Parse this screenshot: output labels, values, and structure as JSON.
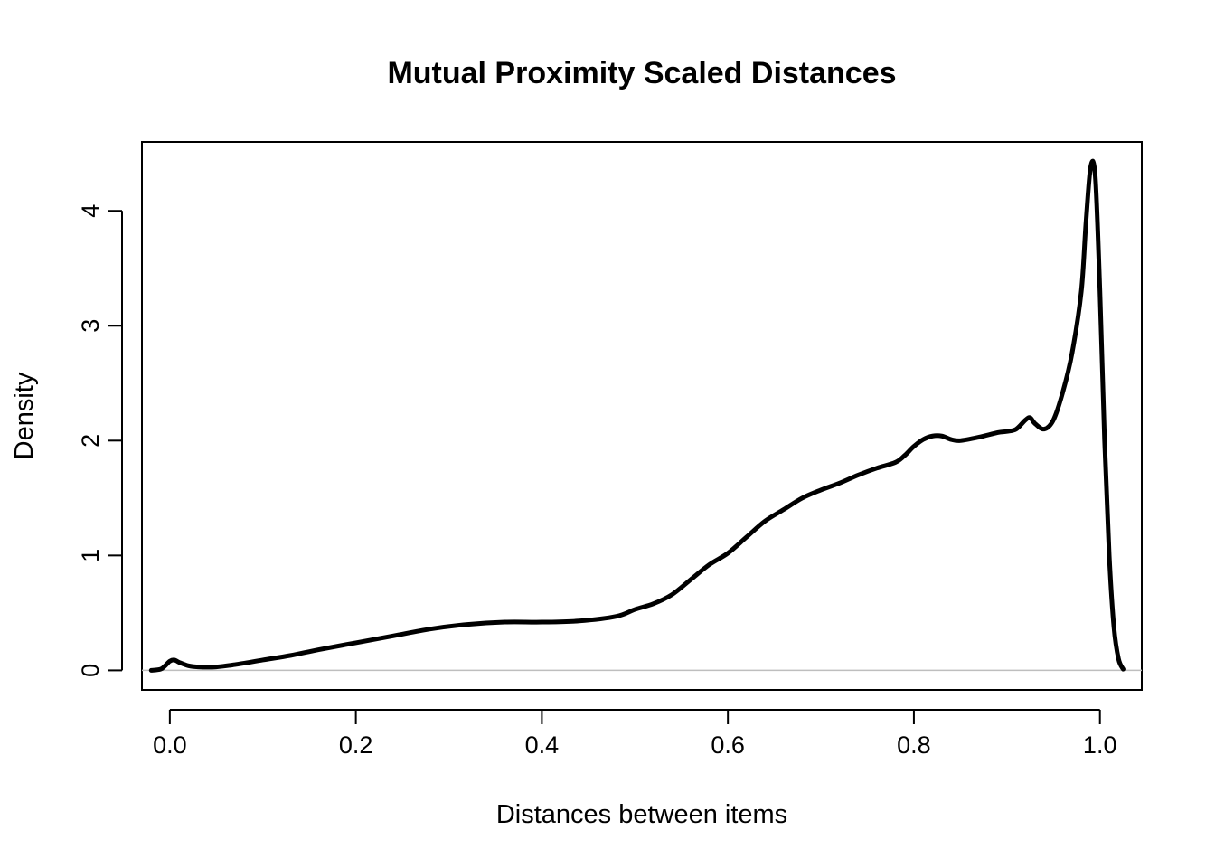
{
  "chart_data": {
    "type": "line",
    "title": "Mutual Proximity Scaled Distances",
    "xlabel": "Distances between items",
    "ylabel": "Density",
    "xlim": [
      -0.03,
      1.045
    ],
    "ylim": [
      -0.17,
      4.6
    ],
    "x_ticks": [
      {
        "value": 0.0,
        "label": "0.0"
      },
      {
        "value": 0.2,
        "label": "0.2"
      },
      {
        "value": 0.4,
        "label": "0.4"
      },
      {
        "value": 0.6,
        "label": "0.6"
      },
      {
        "value": 0.8,
        "label": "0.8"
      },
      {
        "value": 1.0,
        "label": "1.0"
      }
    ],
    "y_ticks": [
      {
        "value": 0,
        "label": "0"
      },
      {
        "value": 1,
        "label": "1"
      },
      {
        "value": 2,
        "label": "2"
      },
      {
        "value": 3,
        "label": "3"
      },
      {
        "value": 4,
        "label": "4"
      }
    ],
    "baseline_y": 0,
    "baseline_color": "#bebebe",
    "line_color": "#000000",
    "grid": false,
    "series": [
      {
        "x": [
          -0.02,
          -0.01,
          -0.005,
          0.0,
          0.005,
          0.01,
          0.02,
          0.03,
          0.05,
          0.07,
          0.1,
          0.13,
          0.16,
          0.2,
          0.24,
          0.28,
          0.32,
          0.36,
          0.4,
          0.44,
          0.48,
          0.5,
          0.52,
          0.54,
          0.56,
          0.58,
          0.6,
          0.62,
          0.64,
          0.66,
          0.68,
          0.7,
          0.72,
          0.74,
          0.76,
          0.78,
          0.79,
          0.8,
          0.81,
          0.82,
          0.83,
          0.84,
          0.85,
          0.87,
          0.89,
          0.9,
          0.91,
          0.92,
          0.925,
          0.93,
          0.94,
          0.95,
          0.96,
          0.97,
          0.98,
          0.985,
          0.99,
          0.995,
          1.0,
          1.005,
          1.01,
          1.015,
          1.02,
          1.025
        ],
        "y": [
          0.0,
          0.01,
          0.04,
          0.08,
          0.09,
          0.07,
          0.04,
          0.03,
          0.03,
          0.05,
          0.09,
          0.13,
          0.18,
          0.24,
          0.3,
          0.36,
          0.4,
          0.42,
          0.42,
          0.43,
          0.47,
          0.53,
          0.58,
          0.66,
          0.79,
          0.92,
          1.02,
          1.16,
          1.3,
          1.4,
          1.5,
          1.57,
          1.63,
          1.7,
          1.76,
          1.81,
          1.87,
          1.95,
          2.01,
          2.04,
          2.04,
          2.01,
          2.0,
          2.03,
          2.07,
          2.08,
          2.1,
          2.18,
          2.2,
          2.15,
          2.1,
          2.18,
          2.42,
          2.76,
          3.3,
          3.9,
          4.38,
          4.3,
          3.3,
          2.0,
          1.0,
          0.38,
          0.1,
          0.01
        ]
      }
    ]
  }
}
